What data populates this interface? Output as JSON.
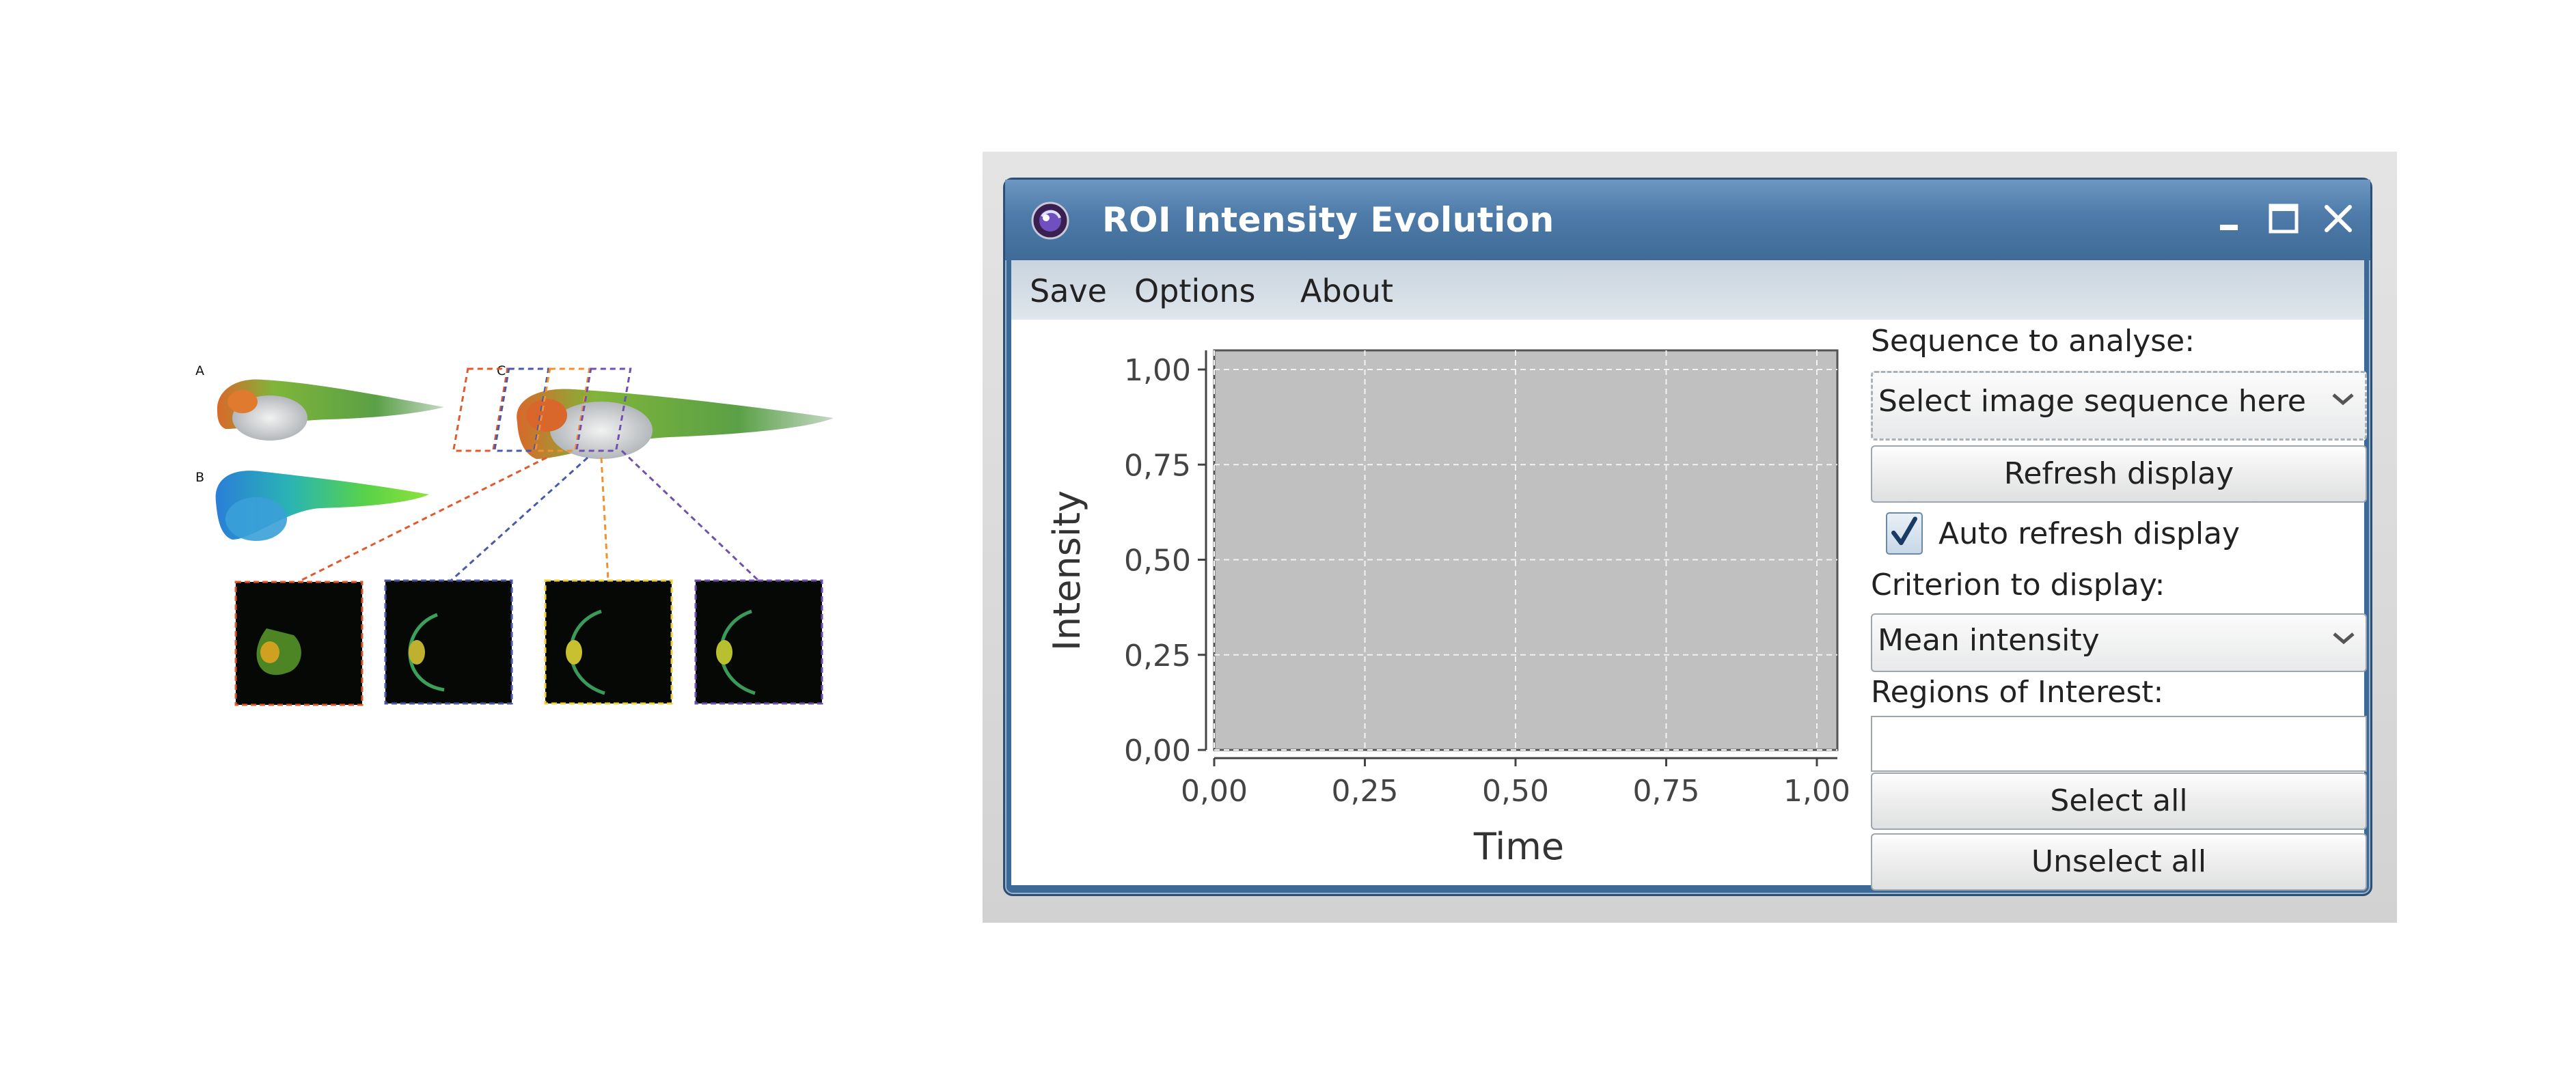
{
  "figure": {
    "panel_letters": [
      "A",
      "B",
      "C"
    ]
  },
  "window": {
    "title": "ROI Intensity Evolution",
    "controls": [
      "minimize-icon",
      "maximize-icon",
      "close-icon"
    ]
  },
  "menu": {
    "items": [
      "Save",
      "Options",
      "About"
    ]
  },
  "chart_data": {
    "type": "line",
    "xlabel": "Time",
    "ylabel": "Intensity",
    "xlim": [
      0,
      1
    ],
    "ylim": [
      0,
      1
    ],
    "xticks": [
      "0,00",
      "0,25",
      "0,50",
      "0,75",
      "1,00"
    ],
    "yticks": [
      "1,00",
      "0,75",
      "0,50",
      "0,25",
      "0,00"
    ],
    "grid": true,
    "plot_background": "#c0c0c0",
    "series": []
  },
  "panel": {
    "sequence_label": "Sequence to analyse:",
    "sequence_value": "Select image sequence here",
    "refresh_button": "Refresh display",
    "auto_refresh_label": "Auto refresh display",
    "auto_refresh_checked": true,
    "criterion_label": "Criterion to display:",
    "criterion_value": "Mean intensity",
    "roi_label": "Regions of Interest:",
    "select_all_button": "Select all",
    "unselect_all_button": "Unselect all"
  },
  "colors": {
    "title_bar": "#4d7aa8",
    "plot_background": "#c0c0c0"
  }
}
